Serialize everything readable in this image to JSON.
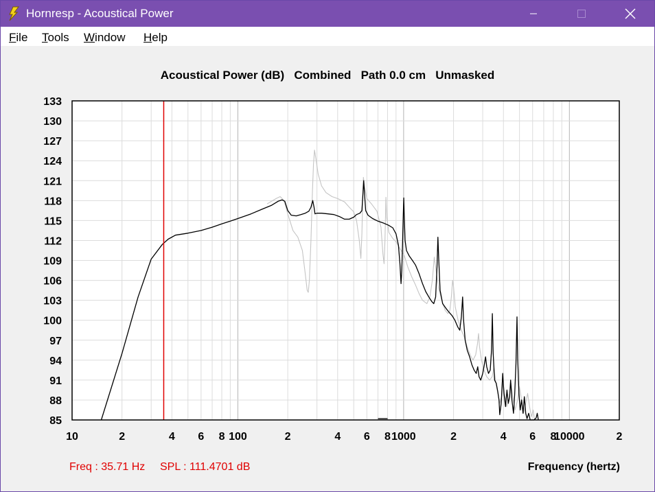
{
  "window": {
    "title": "Hornresp - Acoustical Power",
    "app_icon": "lightning-bolt-icon",
    "controls": [
      "minimize-icon",
      "maximize-icon",
      "close-icon"
    ]
  },
  "menu": [
    {
      "accel": "F",
      "rest": "ile"
    },
    {
      "accel": "T",
      "rest": "ools"
    },
    {
      "accel": "W",
      "rest": "indow"
    },
    {
      "accel": "H",
      "rest": "elp"
    }
  ],
  "chart_data": {
    "type": "line",
    "title": "Acoustical Power (dB)   Combined   Path 0.0 cm   Unmasked",
    "xlabel": "Frequency (hertz)",
    "ylabel": "",
    "xscale": "log",
    "xlim": [
      10,
      20000
    ],
    "ylim": [
      85,
      133
    ],
    "grid": true,
    "y_ticks": [
      "133",
      "130",
      "127",
      "124",
      "121",
      "118",
      "115",
      "112",
      "109",
      "106",
      "103",
      "100",
      "97",
      "94",
      "91",
      "88",
      "85"
    ],
    "x_tick_labels": [
      {
        "f": 10,
        "label": "10"
      },
      {
        "f": 20,
        "label": "2"
      },
      {
        "f": 40,
        "label": "4"
      },
      {
        "f": 60,
        "label": "6"
      },
      {
        "f": 80,
        "label": "8"
      },
      {
        "f": 100,
        "label": "100"
      },
      {
        "f": 200,
        "label": "2"
      },
      {
        "f": 400,
        "label": "4"
      },
      {
        "f": 600,
        "label": "6"
      },
      {
        "f": 800,
        "label": "8"
      },
      {
        "f": 1000,
        "label": "1000"
      },
      {
        "f": 2000,
        "label": "2"
      },
      {
        "f": 4000,
        "label": "4"
      },
      {
        "f": 6000,
        "label": "6"
      },
      {
        "f": 8000,
        "label": "8"
      },
      {
        "f": 10000,
        "label": "10000"
      },
      {
        "f": 20000,
        "label": "2"
      }
    ],
    "cursor": {
      "freq": 35.71,
      "spl": 111.4701,
      "color": "#e00000"
    },
    "readout_freq": "Freq : 35.71 Hz",
    "readout_spl": "SPL : 111.4701 dB",
    "series": [
      {
        "color": "#c4c4c4",
        "points": [
          [
            150,
            117.5
          ],
          [
            170,
            118.3
          ],
          [
            180,
            118.6
          ],
          [
            190,
            118.0
          ],
          [
            200,
            116.0
          ],
          [
            215,
            113.5
          ],
          [
            230,
            112.5
          ],
          [
            245,
            110.5
          ],
          [
            255,
            107.0
          ],
          [
            262,
            104.5
          ],
          [
            266,
            104.2
          ],
          [
            270,
            106.0
          ],
          [
            276,
            112.0
          ],
          [
            282,
            119.5
          ],
          [
            286,
            123.5
          ],
          [
            290,
            125.6
          ],
          [
            296,
            124.2
          ],
          [
            305,
            122.0
          ],
          [
            320,
            120.2
          ],
          [
            340,
            119.2
          ],
          [
            370,
            118.6
          ],
          [
            400,
            118.3
          ],
          [
            440,
            117.8
          ],
          [
            470,
            117.0
          ],
          [
            500,
            116.3
          ],
          [
            520,
            115.0
          ],
          [
            540,
            112.0
          ],
          [
            552,
            109.3
          ],
          [
            560,
            113.0
          ],
          [
            566,
            118.0
          ],
          [
            572,
            121.5
          ],
          [
            580,
            120.2
          ],
          [
            600,
            118.3
          ],
          [
            640,
            117.5
          ],
          [
            690,
            116.4
          ],
          [
            730,
            114.0
          ],
          [
            750,
            110.0
          ],
          [
            762,
            108.5
          ],
          [
            772,
            112.0
          ],
          [
            782,
            118.5
          ],
          [
            790,
            115.5
          ],
          [
            815,
            113.2
          ],
          [
            860,
            112.3
          ],
          [
            900,
            111.8
          ],
          [
            950,
            110.8
          ],
          [
            1010,
            109.7
          ],
          [
            1060,
            108.0
          ],
          [
            1120,
            106.5
          ],
          [
            1180,
            105.3
          ],
          [
            1240,
            104.0
          ],
          [
            1300,
            103.0
          ],
          [
            1380,
            102.5
          ],
          [
            1440,
            103.5
          ],
          [
            1490,
            106.0
          ],
          [
            1530,
            109.5
          ],
          [
            1560,
            108.0
          ],
          [
            1620,
            105.0
          ],
          [
            1700,
            103.0
          ],
          [
            1780,
            101.5
          ],
          [
            1850,
            101.0
          ],
          [
            1900,
            101.5
          ],
          [
            1940,
            103.5
          ],
          [
            1975,
            106.0
          ],
          [
            2000,
            105.0
          ],
          [
            2050,
            102.0
          ],
          [
            2130,
            100.0
          ],
          [
            2230,
            98.5
          ],
          [
            2320,
            97.5
          ],
          [
            2420,
            96.0
          ],
          [
            2520,
            94.8
          ],
          [
            2620,
            94.0
          ],
          [
            2720,
            94.8
          ],
          [
            2790,
            96.5
          ],
          [
            2830,
            98.0
          ],
          [
            2870,
            96.0
          ],
          [
            2950,
            94.0
          ],
          [
            3050,
            92.5
          ],
          [
            3170,
            91.5
          ],
          [
            3300,
            91.0
          ],
          [
            3420,
            91.5
          ],
          [
            3500,
            92.8
          ],
          [
            3580,
            91.0
          ],
          [
            3700,
            89.0
          ],
          [
            3800,
            87.5
          ],
          [
            3900,
            88.5
          ],
          [
            3980,
            90.5
          ],
          [
            4060,
            89.0
          ],
          [
            4180,
            87.0
          ],
          [
            4320,
            88.0
          ],
          [
            4450,
            90.5
          ],
          [
            4550,
            88.5
          ],
          [
            4700,
            86.5
          ],
          [
            4870,
            88.0
          ],
          [
            5000,
            90.0
          ],
          [
            5150,
            88.0
          ],
          [
            5300,
            86.0
          ],
          [
            5450,
            87.5
          ],
          [
            5600,
            89.0
          ],
          [
            5750,
            87.0
          ],
          [
            5900,
            85.5
          ],
          [
            6050,
            86.5
          ],
          [
            6150,
            85.2
          ],
          [
            6300,
            85.0
          ]
        ]
      },
      {
        "color": "#000000",
        "points": [
          [
            15,
            85
          ],
          [
            20,
            95
          ],
          [
            25,
            103.5
          ],
          [
            30,
            109.2
          ],
          [
            35,
            111.4
          ],
          [
            38,
            112.2
          ],
          [
            42,
            112.8
          ],
          [
            50,
            113.1
          ],
          [
            60,
            113.5
          ],
          [
            70,
            114.0
          ],
          [
            80,
            114.5
          ],
          [
            90,
            114.9
          ],
          [
            100,
            115.3
          ],
          [
            120,
            116.0
          ],
          [
            140,
            116.7
          ],
          [
            160,
            117.3
          ],
          [
            175,
            117.9
          ],
          [
            185,
            118.1
          ],
          [
            192,
            117.9
          ],
          [
            200,
            116.5
          ],
          [
            210,
            115.8
          ],
          [
            225,
            115.7
          ],
          [
            240,
            115.9
          ],
          [
            255,
            116.1
          ],
          [
            268,
            116.4
          ],
          [
            276,
            117.0
          ],
          [
            283,
            118.0
          ],
          [
            288,
            117.0
          ],
          [
            292,
            116.0
          ],
          [
            300,
            116.1
          ],
          [
            320,
            116.1
          ],
          [
            350,
            116.0
          ],
          [
            380,
            115.9
          ],
          [
            410,
            115.6
          ],
          [
            440,
            115.2
          ],
          [
            470,
            115.2
          ],
          [
            500,
            115.5
          ],
          [
            520,
            115.9
          ],
          [
            545,
            116.1
          ],
          [
            560,
            116.5
          ],
          [
            568,
            119.0
          ],
          [
            574,
            121.0
          ],
          [
            580,
            119.2
          ],
          [
            590,
            116.5
          ],
          [
            610,
            115.8
          ],
          [
            650,
            115.3
          ],
          [
            700,
            114.9
          ],
          [
            760,
            114.6
          ],
          [
            810,
            114.3
          ],
          [
            860,
            113.9
          ],
          [
            900,
            113.0
          ],
          [
            930,
            111.3
          ],
          [
            950,
            108.5
          ],
          [
            965,
            105.5
          ],
          [
            975,
            107.5
          ],
          [
            985,
            111.5
          ],
          [
            995,
            116.0
          ],
          [
            1002,
            118.4
          ],
          [
            1008,
            116.0
          ],
          [
            1020,
            112.0
          ],
          [
            1040,
            110.5
          ],
          [
            1080,
            109.7
          ],
          [
            1130,
            109.0
          ],
          [
            1180,
            108.3
          ],
          [
            1240,
            107.0
          ],
          [
            1300,
            105.5
          ],
          [
            1360,
            104.3
          ],
          [
            1420,
            103.5
          ],
          [
            1480,
            102.8
          ],
          [
            1520,
            102.5
          ],
          [
            1560,
            103.5
          ],
          [
            1590,
            108.0
          ],
          [
            1610,
            112.5
          ],
          [
            1630,
            109.0
          ],
          [
            1660,
            104.5
          ],
          [
            1720,
            102.5
          ],
          [
            1800,
            101.8
          ],
          [
            1880,
            101.2
          ],
          [
            1960,
            100.7
          ],
          [
            2040,
            100.0
          ],
          [
            2120,
            99.0
          ],
          [
            2180,
            98.5
          ],
          [
            2230,
            100.5
          ],
          [
            2270,
            103.5
          ],
          [
            2300,
            100.0
          ],
          [
            2350,
            97.0
          ],
          [
            2420,
            95.5
          ],
          [
            2500,
            94.5
          ],
          [
            2580,
            93.3
          ],
          [
            2660,
            92.5
          ],
          [
            2740,
            92.0
          ],
          [
            2800,
            93.0
          ],
          [
            2850,
            91.5
          ],
          [
            2920,
            91.0
          ],
          [
            3000,
            92.0
          ],
          [
            3060,
            93.2
          ],
          [
            3120,
            94.5
          ],
          [
            3170,
            93.0
          ],
          [
            3250,
            92.0
          ],
          [
            3330,
            92.5
          ],
          [
            3390,
            95.5
          ],
          [
            3430,
            101.0
          ],
          [
            3470,
            95.0
          ],
          [
            3540,
            91.0
          ],
          [
            3620,
            90.5
          ],
          [
            3700,
            89.2
          ],
          [
            3760,
            88.0
          ],
          [
            3800,
            85.8
          ],
          [
            3880,
            87.5
          ],
          [
            3960,
            92.0
          ],
          [
            4030,
            89.0
          ],
          [
            4120,
            87.0
          ],
          [
            4200,
            89.5
          ],
          [
            4280,
            87.5
          ],
          [
            4360,
            88.5
          ],
          [
            4420,
            91.0
          ],
          [
            4500,
            88.0
          ],
          [
            4600,
            86.0
          ],
          [
            4680,
            89.0
          ],
          [
            4760,
            93.5
          ],
          [
            4830,
            100.5
          ],
          [
            4880,
            94.0
          ],
          [
            4960,
            89.0
          ],
          [
            5050,
            86.5
          ],
          [
            5150,
            88.0
          ],
          [
            5250,
            86.0
          ],
          [
            5350,
            88.5
          ],
          [
            5450,
            86.0
          ],
          [
            5550,
            85.2
          ],
          [
            5680,
            86.0
          ],
          [
            5800,
            85.0
          ],
          [
            6100,
            85.0
          ],
          [
            6300,
            85.3
          ],
          [
            6400,
            86.0
          ],
          [
            6500,
            85.0
          ]
        ]
      },
      {
        "color": "#000000",
        "points": [
          [
            700,
            85.2
          ],
          [
            800,
            85.2
          ]
        ]
      }
    ]
  }
}
